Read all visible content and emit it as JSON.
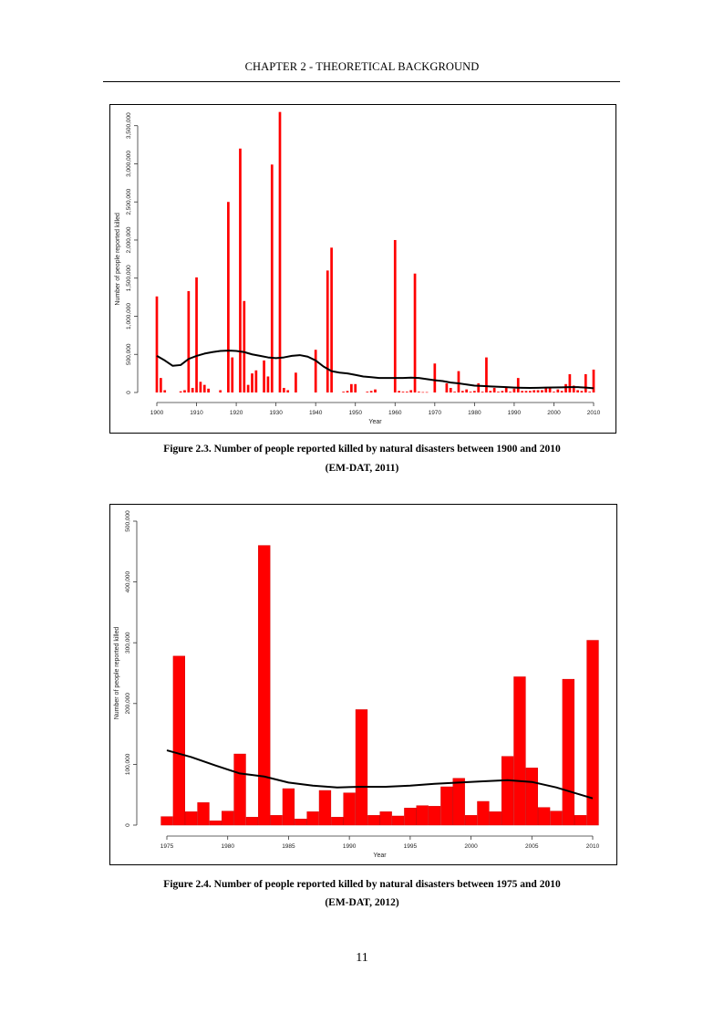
{
  "header": {
    "title": "CHAPTER 2 - THEORETICAL BACKGROUND"
  },
  "figures": [
    {
      "caption_line1": "Figure 2.3. Number of people reported killed by natural disasters between 1900 and 2010",
      "caption_line2": "(EM-DAT, 2011)"
    },
    {
      "caption_line1": "Figure 2.4. Number of people reported killed by natural disasters between 1975 and 2010",
      "caption_line2": "(EM-DAT, 2012)"
    }
  ],
  "chart_data": [
    {
      "type": "bar",
      "title": "",
      "xlabel": "Year",
      "ylabel": "Number of people reported killed",
      "xlim": [
        1900,
        2010
      ],
      "ylim": [
        0,
        3700000
      ],
      "x_ticks": [
        1900,
        1910,
        1920,
        1930,
        1940,
        1950,
        1960,
        1970,
        1980,
        1990,
        2000,
        2010
      ],
      "y_ticks": [
        0,
        500000,
        1000000,
        1500000,
        2000000,
        2500000,
        3000000,
        3500000
      ],
      "y_tick_labels": [
        "0",
        "500,000",
        "1,000,000",
        "1,500,000",
        "2,000,000",
        "2,500,000",
        "3,000,000",
        "3,500,000"
      ],
      "bar_color": "#ff0000",
      "trend_color": "#000000",
      "grid": false,
      "legend": "none",
      "years": [
        1900,
        1901,
        1902,
        1903,
        1904,
        1905,
        1906,
        1907,
        1908,
        1909,
        1910,
        1911,
        1912,
        1913,
        1914,
        1915,
        1916,
        1917,
        1918,
        1919,
        1920,
        1921,
        1922,
        1923,
        1924,
        1925,
        1926,
        1927,
        1928,
        1929,
        1930,
        1931,
        1932,
        1933,
        1934,
        1935,
        1936,
        1937,
        1938,
        1939,
        1940,
        1941,
        1942,
        1943,
        1944,
        1945,
        1946,
        1947,
        1948,
        1949,
        1950,
        1951,
        1952,
        1953,
        1954,
        1955,
        1956,
        1957,
        1958,
        1959,
        1960,
        1961,
        1962,
        1963,
        1964,
        1965,
        1966,
        1967,
        1968,
        1969,
        1970,
        1971,
        1972,
        1973,
        1974,
        1975,
        1976,
        1977,
        1978,
        1979,
        1980,
        1981,
        1982,
        1983,
        1984,
        1985,
        1986,
        1987,
        1988,
        1989,
        1990,
        1991,
        1992,
        1993,
        1994,
        1995,
        1996,
        1997,
        1998,
        1999,
        2000,
        2001,
        2002,
        2003,
        2004,
        2005,
        2006,
        2007,
        2008,
        2009,
        2010
      ],
      "values": [
        1260000,
        190000,
        30000,
        0,
        0,
        0,
        15000,
        30000,
        1330000,
        60000,
        1510000,
        140000,
        100000,
        50000,
        0,
        0,
        30000,
        0,
        2500000,
        460000,
        0,
        3200000,
        1200000,
        100000,
        250000,
        290000,
        0,
        420000,
        210000,
        2990000,
        0,
        3680000,
        60000,
        30000,
        0,
        260000,
        0,
        0,
        0,
        0,
        560000,
        0,
        0,
        1600000,
        1900000,
        0,
        0,
        10000,
        20000,
        110000,
        110000,
        0,
        0,
        10000,
        20000,
        40000,
        0,
        0,
        0,
        0,
        2000000,
        20000,
        10000,
        10000,
        30000,
        1560000,
        10000,
        5000,
        5000,
        0,
        380000,
        0,
        0,
        120000,
        60000,
        10000,
        280000,
        20000,
        40000,
        10000,
        20000,
        120000,
        10000,
        460000,
        20000,
        60000,
        10000,
        20000,
        60000,
        10000,
        50000,
        190000,
        20000,
        20000,
        20000,
        30000,
        30000,
        30000,
        70000,
        70000,
        10000,
        40000,
        20000,
        110000,
        240000,
        90000,
        30000,
        20000,
        240000,
        10000,
        300000
      ],
      "trend": [
        [
          1900,
          480000
        ],
        [
          1902,
          420000
        ],
        [
          1904,
          350000
        ],
        [
          1906,
          360000
        ],
        [
          1908,
          440000
        ],
        [
          1910,
          480000
        ],
        [
          1912,
          510000
        ],
        [
          1914,
          530000
        ],
        [
          1916,
          545000
        ],
        [
          1918,
          550000
        ],
        [
          1920,
          545000
        ],
        [
          1922,
          530000
        ],
        [
          1924,
          500000
        ],
        [
          1926,
          480000
        ],
        [
          1928,
          460000
        ],
        [
          1930,
          450000
        ],
        [
          1932,
          460000
        ],
        [
          1934,
          480000
        ],
        [
          1936,
          490000
        ],
        [
          1938,
          470000
        ],
        [
          1940,
          420000
        ],
        [
          1942,
          340000
        ],
        [
          1944,
          280000
        ],
        [
          1946,
          260000
        ],
        [
          1948,
          250000
        ],
        [
          1950,
          230000
        ],
        [
          1952,
          210000
        ],
        [
          1954,
          200000
        ],
        [
          1956,
          190000
        ],
        [
          1958,
          190000
        ],
        [
          1960,
          190000
        ],
        [
          1962,
          190000
        ],
        [
          1964,
          195000
        ],
        [
          1966,
          190000
        ],
        [
          1968,
          175000
        ],
        [
          1970,
          160000
        ],
        [
          1972,
          150000
        ],
        [
          1974,
          130000
        ],
        [
          1976,
          120000
        ],
        [
          1978,
          105000
        ],
        [
          1980,
          90000
        ],
        [
          1982,
          85000
        ],
        [
          1984,
          80000
        ],
        [
          1986,
          75000
        ],
        [
          1988,
          70000
        ],
        [
          1990,
          65000
        ],
        [
          1992,
          62000
        ],
        [
          1994,
          60000
        ],
        [
          1996,
          62000
        ],
        [
          1998,
          64000
        ],
        [
          2000,
          66000
        ],
        [
          2002,
          68000
        ],
        [
          2004,
          70000
        ],
        [
          2006,
          70000
        ],
        [
          2008,
          65000
        ],
        [
          2010,
          55000
        ]
      ]
    },
    {
      "type": "bar",
      "title": "",
      "xlabel": "Year",
      "ylabel": "Number of people reported killed",
      "xlim": [
        1975,
        2010
      ],
      "ylim": [
        0,
        500000
      ],
      "x_ticks": [
        1975,
        1980,
        1985,
        1990,
        1995,
        2000,
        2005,
        2010
      ],
      "y_ticks": [
        0,
        100000,
        200000,
        300000,
        400000,
        500000
      ],
      "y_tick_labels": [
        "0",
        "100,000",
        "200,000",
        "300,000",
        "400,000",
        "500,000"
      ],
      "bar_color": "#ff0000",
      "trend_color": "#000000",
      "grid": false,
      "legend": "none",
      "years": [
        1975,
        1976,
        1977,
        1978,
        1979,
        1980,
        1981,
        1982,
        1983,
        1984,
        1985,
        1986,
        1987,
        1988,
        1989,
        1990,
        1991,
        1992,
        1993,
        1994,
        1995,
        1996,
        1997,
        1998,
        1999,
        2000,
        2001,
        2002,
        2003,
        2004,
        2005,
        2006,
        2007,
        2008,
        2009,
        2010
      ],
      "values": [
        14000,
        278000,
        22000,
        37000,
        7000,
        23000,
        117000,
        13000,
        460000,
        16000,
        60000,
        10000,
        22000,
        57000,
        13000,
        53000,
        190000,
        16000,
        22000,
        15000,
        28000,
        32000,
        31000,
        63000,
        77000,
        16000,
        39000,
        22000,
        113000,
        244000,
        94000,
        29000,
        23000,
        240000,
        16000,
        304000
      ],
      "trend": [
        [
          1975,
          123000
        ],
        [
          1977,
          112000
        ],
        [
          1979,
          98000
        ],
        [
          1981,
          85000
        ],
        [
          1983,
          80000
        ],
        [
          1985,
          70000
        ],
        [
          1987,
          65000
        ],
        [
          1989,
          62000
        ],
        [
          1991,
          63000
        ],
        [
          1993,
          63000
        ],
        [
          1995,
          65000
        ],
        [
          1997,
          68000
        ],
        [
          1999,
          70000
        ],
        [
          2001,
          72000
        ],
        [
          2003,
          74000
        ],
        [
          2005,
          71000
        ],
        [
          2007,
          62000
        ],
        [
          2009,
          50000
        ],
        [
          2010,
          44000
        ]
      ]
    }
  ],
  "page": {
    "number": "11"
  }
}
